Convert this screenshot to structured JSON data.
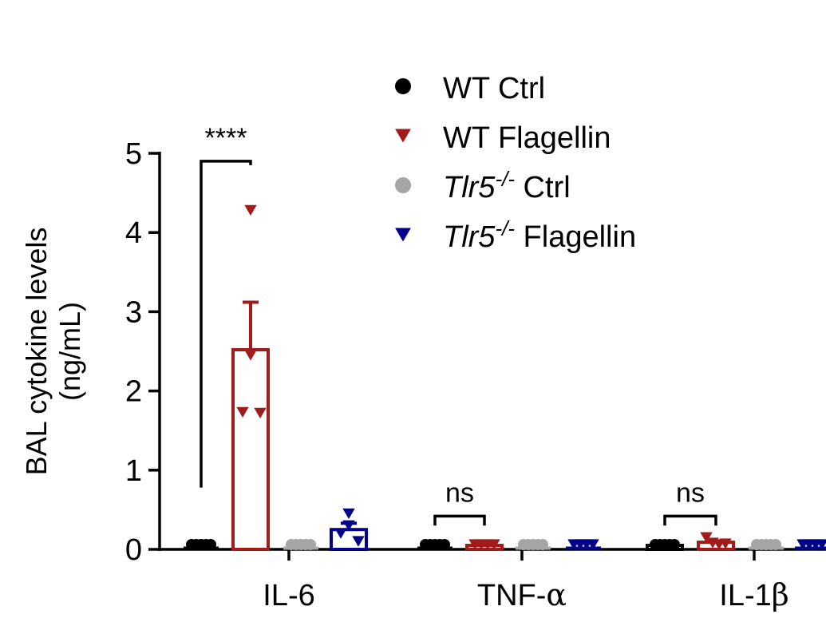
{
  "chart_data": {
    "type": "bar",
    "ylabel_lines": [
      "BAL cytokine levels",
      "(ng/mL)"
    ],
    "ylim": [
      0,
      5
    ],
    "yticks": [
      "0",
      "1",
      "2",
      "3",
      "4",
      "5"
    ],
    "categories": [
      {
        "main": "IL-6",
        "greek": ""
      },
      {
        "main": "TNF-",
        "greek": "α"
      },
      {
        "main": "IL-1",
        "greek": "β"
      }
    ],
    "series": [
      {
        "name_prefix": "WT Ctrl",
        "name_italic": "",
        "name_sup": "",
        "name_suffix": "",
        "marker": "circle",
        "color": "#000000",
        "values": [
          0.02,
          0.02,
          0.05
        ],
        "errors": [
          0.01,
          0.01,
          0.01
        ],
        "points": [
          [
            0.02,
            0.02,
            0.02,
            0.02,
            0.02
          ],
          [
            0.02,
            0.02,
            0.02,
            0.02,
            0.02
          ],
          [
            0.05,
            0.04,
            0.05,
            0.06,
            0.05
          ]
        ]
      },
      {
        "name_prefix": "WT  Flagellin",
        "name_italic": "",
        "name_sup": "",
        "name_suffix": "",
        "marker": "triangle-down",
        "color": "#a31a1a",
        "values": [
          2.52,
          0.05,
          0.09
        ],
        "errors": [
          0.6,
          0.01,
          0.03
        ],
        "points": [
          [
            4.28,
            2.45,
            1.73,
            1.72
          ],
          [
            0.05,
            0.04,
            0.06,
            0.05
          ],
          [
            0.15,
            0.08,
            0.06,
            0.07
          ]
        ]
      },
      {
        "name_prefix": "",
        "name_italic": "Tlr5",
        "name_sup": "-/-",
        "name_suffix": " Ctrl",
        "marker": "circle",
        "color": "#a6a6a6",
        "values": [
          0.0,
          0.0,
          0.02
        ],
        "errors": [
          0.01,
          0.01,
          0.01
        ],
        "points": [
          [
            0.0,
            0.0,
            0.0,
            0.0,
            0.0
          ],
          [
            0.0,
            0.0,
            0.0,
            0.0,
            0.0
          ],
          [
            0.02,
            0.01,
            0.03,
            0.02,
            0.02
          ]
        ]
      },
      {
        "name_prefix": "",
        "name_italic": "Tlr5",
        "name_sup": "-/-",
        "name_suffix": " Flagellin",
        "marker": "triangle-down",
        "color": "#00008b",
        "values": [
          0.25,
          0.0,
          0.01
        ],
        "errors": [
          0.08,
          0.005,
          0.005
        ],
        "points": [
          [
            0.45,
            0.3,
            0.2,
            0.1
          ],
          [
            0.0,
            0.0,
            0.0,
            0.0
          ],
          [
            0.01,
            0.01,
            0.01,
            0.01
          ]
        ]
      }
    ],
    "significance": [
      {
        "label": "****",
        "category": 0,
        "from_series": 0,
        "to_series": 1,
        "left_y": 0.78,
        "right_y": 4.85,
        "bar_y": 4.9
      },
      {
        "label": "ns",
        "category": 1,
        "from_series": 0,
        "to_series": 1,
        "left_y": 0.3,
        "right_y": 0.3,
        "bar_y": 0.42
      },
      {
        "label": "ns",
        "category": 2,
        "from_series": 0,
        "to_series": 1,
        "left_y": 0.3,
        "right_y": 0.3,
        "bar_y": 0.42
      }
    ],
    "legend_position": "top-right",
    "grid": false
  }
}
